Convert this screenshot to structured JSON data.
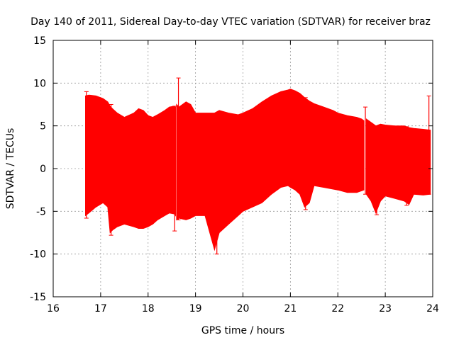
{
  "chart_data": {
    "type": "line",
    "title": "Day 140 of 2011, Sidereal Day-to-day VTEC variation (SDTVAR) for receiver braz",
    "xlabel": "GPS time / hours",
    "ylabel": "SDTVAR / TECUs",
    "xlim": [
      16,
      24
    ],
    "ylim": [
      -15,
      15
    ],
    "x_ticks": [
      16,
      17,
      18,
      19,
      20,
      21,
      22,
      23,
      24
    ],
    "y_ticks": [
      -15,
      -10,
      -5,
      0,
      5,
      10,
      15
    ],
    "grid": true,
    "series": [
      {
        "name": "SDTVAR error-bar envelope",
        "color": "#ff0000",
        "segments": [
          {
            "x": [
              16.68,
              16.75,
              16.9,
              17.05,
              17.15,
              17.2,
              17.25,
              17.35,
              17.5,
              17.7,
              17.8,
              17.9,
              18.0,
              18.1,
              18.2,
              18.35,
              18.45,
              18.55,
              18.58
            ],
            "upper": [
              8.5,
              8.6,
              8.5,
              8.2,
              7.8,
              7.3,
              7.0,
              6.5,
              6.0,
              6.5,
              7.0,
              6.8,
              6.2,
              6.0,
              6.3,
              6.8,
              7.2,
              7.3,
              7.2
            ],
            "lower": [
              -5.5,
              -5.2,
              -4.5,
              -4.0,
              -4.5,
              -7.5,
              -7.2,
              -6.8,
              -6.5,
              -6.8,
              -7.0,
              -7.0,
              -6.8,
              -6.5,
              -6.0,
              -5.5,
              -5.2,
              -5.3,
              -5.5
            ]
          },
          {
            "x": [
              18.6,
              18.65,
              18.8,
              18.9,
              19.0,
              19.2,
              19.4,
              19.5,
              19.7,
              19.9,
              20.0,
              20.2,
              20.4,
              20.6,
              20.8,
              20.95,
              21.0,
              21.1,
              21.2,
              21.3,
              21.4,
              21.5,
              21.7,
              21.9,
              22.0,
              22.2,
              22.4,
              22.5,
              22.55
            ],
            "upper": [
              7.5,
              7.2,
              7.8,
              7.5,
              6.5,
              6.5,
              6.5,
              6.8,
              6.5,
              6.3,
              6.5,
              7.0,
              7.8,
              8.5,
              9.0,
              9.2,
              9.3,
              9.1,
              8.8,
              8.3,
              7.9,
              7.6,
              7.2,
              6.8,
              6.5,
              6.2,
              6.0,
              5.8,
              5.6
            ],
            "lower": [
              -6.0,
              -5.8,
              -6.0,
              -5.8,
              -5.5,
              -5.5,
              -9.5,
              -7.5,
              -6.5,
              -5.5,
              -5.0,
              -4.5,
              -4.0,
              -3.0,
              -2.2,
              -2.0,
              -2.2,
              -2.5,
              -3.0,
              -4.5,
              -4.0,
              -2.0,
              -2.2,
              -2.4,
              -2.5,
              -2.8,
              -2.8,
              -2.6,
              -2.5
            ]
          },
          {
            "x": [
              22.6,
              22.7,
              22.8,
              22.9,
              23.0,
              23.2,
              23.4,
              23.5,
              23.6,
              23.8,
              23.95
            ],
            "upper": [
              5.8,
              5.4,
              5.0,
              5.2,
              5.1,
              5.0,
              5.0,
              4.8,
              4.7,
              4.6,
              4.5
            ],
            "lower": [
              -3.0,
              -3.8,
              -5.2,
              -3.8,
              -3.2,
              -3.5,
              -3.8,
              -4.2,
              -3.0,
              -3.1,
              -3.0
            ]
          }
        ]
      }
    ],
    "spikes": [
      {
        "x": 16.7,
        "upper": 9.0,
        "lower": -5.8
      },
      {
        "x": 17.22,
        "upper": 7.5,
        "lower": -7.8
      },
      {
        "x": 18.56,
        "upper": 7.3,
        "lower": -7.3
      },
      {
        "x": 18.64,
        "upper": 10.6,
        "lower": -6.0
      },
      {
        "x": 19.45,
        "upper": 6.5,
        "lower": -10.0
      },
      {
        "x": 21.32,
        "upper": 8.3,
        "lower": -4.8
      },
      {
        "x": 22.58,
        "upper": 7.2,
        "lower": -3.0
      },
      {
        "x": 22.82,
        "upper": 5.0,
        "lower": -5.4
      },
      {
        "x": 23.45,
        "upper": 4.9,
        "lower": -4.3
      },
      {
        "x": 23.92,
        "upper": 8.5,
        "lower": -3.0
      }
    ]
  }
}
